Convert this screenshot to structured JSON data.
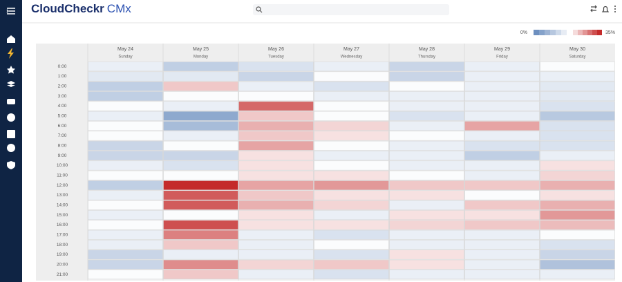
{
  "header": {
    "logo": {
      "brand": "CloudCheckr",
      "product": "CMx"
    }
  },
  "heatmap": {
    "legend": {
      "min": {
        "value": 0,
        "label": "0%"
      },
      "max": {
        "value": 35,
        "label": "35%"
      },
      "colors": {
        "low": "#6d8fbf",
        "mid": "#ffffff",
        "high": "#c42b2b"
      }
    },
    "columns": [
      {
        "date": "May 24",
        "day": "Sunday"
      },
      {
        "date": "May 25",
        "day": "Monday"
      },
      {
        "date": "May 26",
        "day": "Tuesday"
      },
      {
        "date": "May 27",
        "day": "Wednesday"
      },
      {
        "date": "May 28",
        "day": "Thursday"
      },
      {
        "date": "May 29",
        "day": "Friday"
      },
      {
        "date": "May 30",
        "day": "Saturday"
      }
    ],
    "rows": [
      "0:00",
      "1:00",
      "2:00",
      "3:00",
      "4:00",
      "5:00",
      "6:00",
      "7:00",
      "8:00",
      "9:00",
      "10:00",
      "11:00",
      "12:00",
      "13:00",
      "14:00",
      "15:00",
      "16:00",
      "17:00",
      "18:00",
      "19:00",
      "20:00",
      "21:00"
    ],
    "values": [
      [
        15,
        10,
        13,
        15,
        11,
        15,
        17
      ],
      [
        14,
        14,
        11,
        17,
        11,
        15,
        15
      ],
      [
        10,
        22,
        15,
        13,
        17,
        15,
        14
      ],
      [
        10,
        17,
        17,
        15,
        15,
        15,
        14
      ],
      [
        17,
        15,
        30,
        17,
        15,
        15,
        13
      ],
      [
        15,
        4,
        22,
        17,
        13,
        15,
        9
      ],
      [
        17,
        7,
        24,
        21,
        15,
        25,
        13
      ],
      [
        17,
        15,
        22,
        20,
        17,
        15,
        13
      ],
      [
        11,
        17,
        25,
        17,
        15,
        13,
        13
      ],
      [
        11,
        11,
        20,
        15,
        15,
        10,
        15
      ],
      [
        15,
        13,
        20,
        17,
        15,
        15,
        20
      ],
      [
        17,
        17,
        20,
        20,
        17,
        15,
        21
      ],
      [
        10,
        35,
        25,
        26,
        22,
        22,
        24
      ],
      [
        15,
        31,
        22,
        20,
        20,
        17,
        20
      ],
      [
        17,
        31,
        24,
        21,
        15,
        22,
        24
      ],
      [
        15,
        17,
        20,
        15,
        20,
        20,
        26
      ],
      [
        17,
        32,
        20,
        20,
        21,
        22,
        23
      ],
      [
        15,
        28,
        15,
        13,
        15,
        15,
        17
      ],
      [
        15,
        22,
        15,
        17,
        15,
        15,
        13
      ],
      [
        11,
        15,
        15,
        13,
        20,
        15,
        11
      ],
      [
        11,
        27,
        21,
        22,
        20,
        15,
        8
      ],
      [
        17,
        22,
        15,
        13,
        15,
        15,
        15
      ]
    ]
  }
}
